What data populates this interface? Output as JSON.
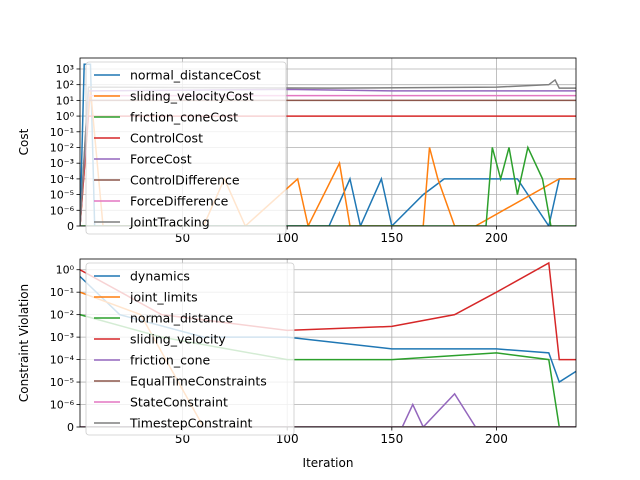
{
  "chart_data": [
    {
      "type": "line",
      "ylabel": "Cost",
      "xlabel": "",
      "xlim": [
        1,
        238
      ],
      "yscale": "symlog",
      "ylim": [
        0,
        5000
      ],
      "grid": true,
      "legend_position": "upper-left",
      "x_ticks": [
        50,
        100,
        150,
        200
      ],
      "y_ticks": [
        {
          "value": 0,
          "label": "0"
        },
        {
          "value": 1e-06,
          "label": "10⁻⁶"
        },
        {
          "value": 1e-05,
          "label": "10⁻⁵"
        },
        {
          "value": 0.0001,
          "label": "10⁻⁴"
        },
        {
          "value": 0.001,
          "label": "10⁻³"
        },
        {
          "value": 0.01,
          "label": "10⁻²"
        },
        {
          "value": 0.1,
          "label": "10⁻¹"
        },
        {
          "value": 1,
          "label": "10⁰"
        },
        {
          "value": 10,
          "label": "10¹"
        },
        {
          "value": 100,
          "label": "10²"
        },
        {
          "value": 1000,
          "label": "10³"
        }
      ],
      "series": [
        {
          "name": "normal_distanceCost",
          "color": "#1f77b4",
          "points": [
            [
              1,
              0
            ],
            [
              3,
              2000
            ],
            [
              6,
              2000
            ],
            [
              8,
              0
            ],
            [
              120,
              0
            ],
            [
              130,
              0.0001
            ],
            [
              135,
              0
            ],
            [
              145,
              0.0001
            ],
            [
              150,
              0
            ],
            [
              165,
              1e-05
            ],
            [
              175,
              0.0001
            ],
            [
              210,
              0.0001
            ],
            [
              225,
              0
            ],
            [
              230,
              0.0001
            ],
            [
              238,
              0.0001
            ]
          ]
        },
        {
          "name": "sliding_velocityCost",
          "color": "#ff7f0e",
          "points": [
            [
              1,
              0
            ],
            [
              6,
              50
            ],
            [
              12,
              0
            ],
            [
              60,
              0
            ],
            [
              70,
              0.0001
            ],
            [
              80,
              0
            ],
            [
              105,
              0.0001
            ],
            [
              110,
              0
            ],
            [
              125,
              0.001
            ],
            [
              130,
              0
            ],
            [
              165,
              0
            ],
            [
              168,
              0.01
            ],
            [
              172,
              0.0001
            ],
            [
              180,
              0
            ],
            [
              190,
              0
            ],
            [
              230,
              0.0001
            ],
            [
              238,
              0.0001
            ]
          ]
        },
        {
          "name": "friction_coneCost",
          "color": "#2ca02c",
          "points": [
            [
              1,
              0
            ],
            [
              195,
              0
            ],
            [
              198,
              0.01
            ],
            [
              202,
              0.0001
            ],
            [
              206,
              0.01
            ],
            [
              210,
              1e-05
            ],
            [
              215,
              0.01
            ],
            [
              222,
              0.0001
            ],
            [
              226,
              0
            ],
            [
              238,
              0
            ]
          ]
        },
        {
          "name": "ControlCost",
          "color": "#d62728",
          "points": [
            [
              1,
              0
            ],
            [
              5,
              1
            ],
            [
              238,
              1
            ]
          ]
        },
        {
          "name": "ForceCost",
          "color": "#9467bd",
          "points": [
            [
              1,
              0
            ],
            [
              5,
              40
            ],
            [
              100,
              50
            ],
            [
              150,
              40
            ],
            [
              238,
              40
            ]
          ]
        },
        {
          "name": "ControlDifference",
          "color": "#8c564b",
          "points": [
            [
              1,
              0
            ],
            [
              5,
              10
            ],
            [
              238,
              10
            ]
          ]
        },
        {
          "name": "ForceDifference",
          "color": "#e377c2",
          "points": [
            [
              1,
              0
            ],
            [
              5,
              20
            ],
            [
              238,
              20
            ]
          ]
        },
        {
          "name": "JointTracking",
          "color": "#7f7f7f",
          "points": [
            [
              1,
              0
            ],
            [
              5,
              70
            ],
            [
              120,
              60
            ],
            [
              200,
              70
            ],
            [
              225,
              100
            ],
            [
              228,
              200
            ],
            [
              230,
              60
            ],
            [
              238,
              60
            ]
          ]
        }
      ]
    },
    {
      "type": "line",
      "ylabel": "Constraint Violation",
      "xlabel": "Iteration",
      "xlim": [
        1,
        238
      ],
      "yscale": "symlog",
      "ylim": [
        0,
        3
      ],
      "grid": true,
      "legend_position": "upper-left",
      "x_ticks": [
        50,
        100,
        150,
        200
      ],
      "y_ticks": [
        {
          "value": 0,
          "label": "0"
        },
        {
          "value": 1e-06,
          "label": "10⁻⁶"
        },
        {
          "value": 1e-05,
          "label": "10⁻⁵"
        },
        {
          "value": 0.0001,
          "label": "10⁻⁴"
        },
        {
          "value": 0.001,
          "label": "10⁻³"
        },
        {
          "value": 0.01,
          "label": "10⁻²"
        },
        {
          "value": 0.1,
          "label": "10⁻¹"
        },
        {
          "value": 1,
          "label": "10⁰"
        }
      ],
      "series": [
        {
          "name": "dynamics",
          "color": "#1f77b4",
          "points": [
            [
              1,
              0.5
            ],
            [
              20,
              0.01
            ],
            [
              60,
              0.001
            ],
            [
              100,
              0.001
            ],
            [
              150,
              0.0003
            ],
            [
              200,
              0.0003
            ],
            [
              225,
              0.0002
            ],
            [
              230,
              1e-05
            ],
            [
              238,
              3e-05
            ]
          ]
        },
        {
          "name": "joint_limits",
          "color": "#ff7f0e",
          "points": [
            [
              1,
              0.1
            ],
            [
              30,
              0.01
            ],
            [
              60,
              0
            ],
            [
              238,
              0
            ]
          ]
        },
        {
          "name": "normal_distance",
          "color": "#2ca02c",
          "points": [
            [
              1,
              0.01
            ],
            [
              40,
              0.001
            ],
            [
              100,
              0.0001
            ],
            [
              150,
              0.0001
            ],
            [
              200,
              0.0002
            ],
            [
              225,
              0.0001
            ],
            [
              230,
              0
            ],
            [
              238,
              0
            ]
          ]
        },
        {
          "name": "sliding_velocity",
          "color": "#d62728",
          "points": [
            [
              1,
              1
            ],
            [
              40,
              0.01
            ],
            [
              100,
              0.002
            ],
            [
              150,
              0.003
            ],
            [
              180,
              0.01
            ],
            [
              200,
              0.1
            ],
            [
              225,
              2
            ],
            [
              230,
              0.0001
            ],
            [
              238,
              0.0001
            ]
          ]
        },
        {
          "name": "friction_cone",
          "color": "#9467bd",
          "points": [
            [
              1,
              0
            ],
            [
              155,
              0
            ],
            [
              160,
              1e-06
            ],
            [
              165,
              0
            ],
            [
              180,
              3e-06
            ],
            [
              190,
              0
            ],
            [
              238,
              0
            ]
          ]
        },
        {
          "name": "EqualTimeConstraints",
          "color": "#8c564b",
          "points": [
            [
              1,
              0
            ],
            [
              238,
              0
            ]
          ]
        },
        {
          "name": "StateConstraint",
          "color": "#e377c2",
          "points": [
            [
              1,
              0
            ],
            [
              238,
              0
            ]
          ]
        },
        {
          "name": "TimestepConstraint",
          "color": "#7f7f7f",
          "points": [
            [
              1,
              0
            ],
            [
              238,
              0
            ]
          ]
        }
      ]
    }
  ]
}
